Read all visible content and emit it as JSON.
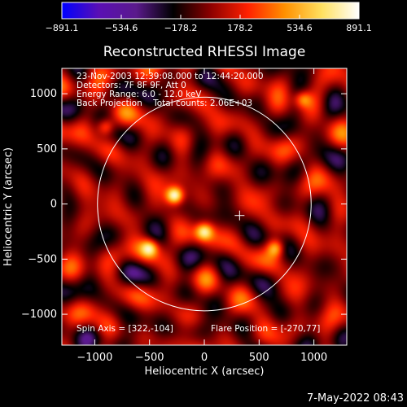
{
  "chart_data": {
    "type": "heatmap",
    "title": "Reconstructed RHESSI Image",
    "xlabel": "Heliocentric X (arcsec)",
    "ylabel": "Heliocentric Y (arcsec)",
    "xlim": [
      -1300,
      1300
    ],
    "ylim": [
      -1280,
      1230
    ],
    "xticks": [
      -1000,
      -500,
      0,
      500,
      1000
    ],
    "yticks": [
      -1000,
      -500,
      0,
      500,
      1000
    ],
    "xtick_labels": [
      "−1000",
      "−500",
      "0",
      "500",
      "1000"
    ],
    "ytick_labels": [
      "−1000",
      "−500",
      "0",
      "500",
      "1000"
    ],
    "colorbar": {
      "min": -891.1,
      "max": 891.1,
      "tick_values": [
        -891.1,
        -534.6,
        -178.2,
        178.2,
        534.6,
        891.1
      ],
      "tick_labels": [
        "−891.1",
        "−534.6",
        "−178.2",
        "178.2",
        "534.6",
        "891.1"
      ],
      "colors": [
        "#0000ff",
        "#5a0fb4",
        "#5a1a8c",
        "#000000",
        "#8b0000",
        "#ff2000",
        "#ff9000",
        "#ffe060",
        "#ffffff"
      ]
    },
    "info_lines": [
      "23-Nov-2003 12:39:08.000 to 12:44:20.000",
      "Detectors: 7F 8F 9F, Att 0",
      "Energy Range: 6.0 - 12.0 keV",
      "Back Projection    Total counts: 2.06E+03"
    ],
    "spin_axis_text": "Spin Axis = [322,-104]",
    "flare_position_text": "Flare Position = [-270,77]",
    "solar_limb_radius": 975,
    "spin_axis": [
      322,
      -104
    ],
    "hot_spots": [
      {
        "x": -270,
        "y": 77,
        "v": 891
      },
      {
        "x": 0,
        "y": -250,
        "v": 650
      },
      {
        "x": -500,
        "y": -400,
        "v": 600
      },
      {
        "x": 650,
        "y": -400,
        "v": 560
      },
      {
        "x": -900,
        "y": 700,
        "v": 520
      },
      {
        "x": 900,
        "y": 950,
        "v": 480
      }
    ]
  },
  "footer": {
    "timestamp": "7-May-2022 08:43"
  }
}
